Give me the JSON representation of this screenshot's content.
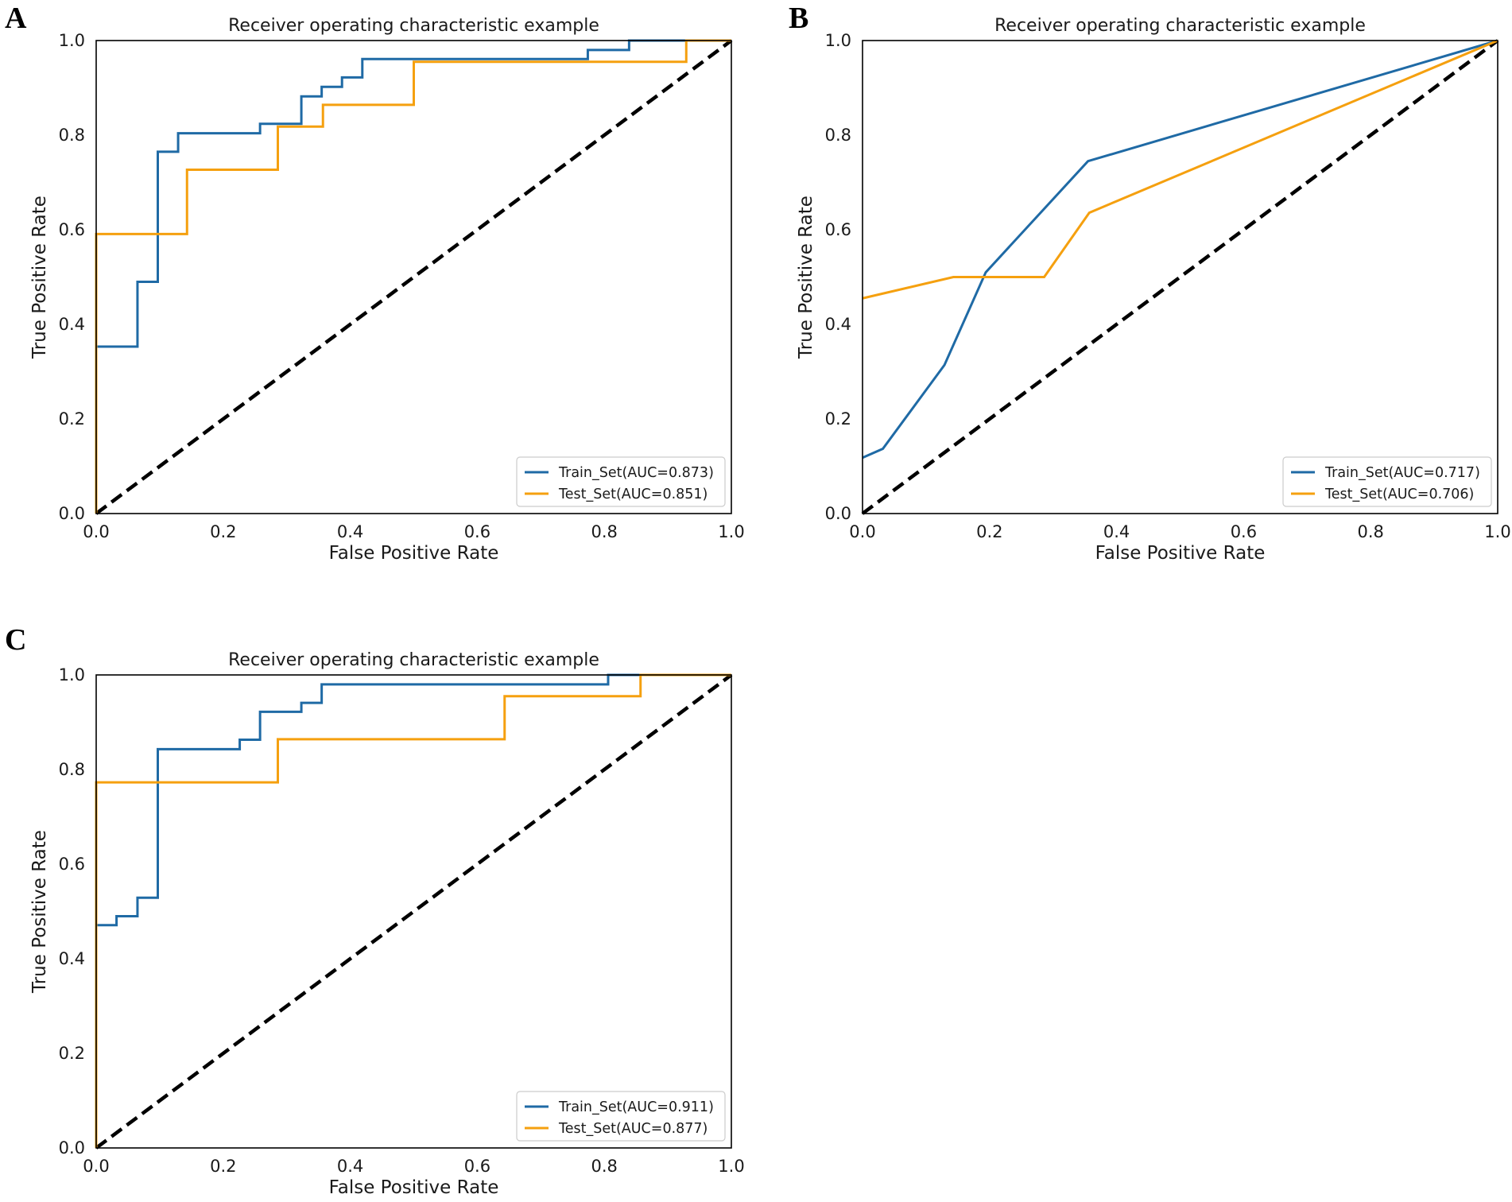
{
  "figure": {
    "panels": [
      "A",
      "B",
      "C"
    ]
  },
  "chart_data": [
    {
      "panel": "A",
      "type": "line",
      "title": "Receiver operating characteristic example",
      "xlabel": "False Positive Rate",
      "ylabel": "True Positive Rate",
      "xlim": [
        0,
        1
      ],
      "ylim": [
        0,
        1
      ],
      "xticks": [
        "0.0",
        "0.2",
        "0.4",
        "0.6",
        "0.8",
        "1.0"
      ],
      "yticks": [
        "0.0",
        "0.2",
        "0.4",
        "0.6",
        "0.8",
        "1.0"
      ],
      "legend_position": "lower-right",
      "grid": false,
      "series": [
        {
          "name": "Train_Set(AUC=0.873)",
          "color": "#1f6aa5",
          "x": [
            0,
            0,
            0.065,
            0.065,
            0.097,
            0.097,
            0.129,
            0.129,
            0.258,
            0.258,
            0.323,
            0.323,
            0.355,
            0.355,
            0.387,
            0.387,
            0.419,
            0.419,
            0.774,
            0.774,
            0.839,
            0.839,
            1.0
          ],
          "y": [
            0,
            0.353,
            0.353,
            0.49,
            0.49,
            0.765,
            0.765,
            0.804,
            0.804,
            0.824,
            0.824,
            0.882,
            0.882,
            0.902,
            0.902,
            0.922,
            0.922,
            0.961,
            0.961,
            0.98,
            0.98,
            1.0,
            1.0
          ]
        },
        {
          "name": "Test_Set(AUC=0.851)",
          "color": "#f5a00f",
          "x": [
            0,
            0,
            0.143,
            0.143,
            0.286,
            0.286,
            0.357,
            0.357,
            0.5,
            0.5,
            0.929,
            0.929,
            1.0
          ],
          "y": [
            0,
            0.591,
            0.591,
            0.727,
            0.727,
            0.818,
            0.818,
            0.864,
            0.864,
            0.955,
            0.955,
            1.0,
            1.0
          ]
        }
      ]
    },
    {
      "panel": "B",
      "type": "line",
      "title": "Receiver operating characteristic example",
      "xlabel": "False Positive Rate",
      "ylabel": "True Positive Rate",
      "xlim": [
        0,
        1
      ],
      "ylim": [
        0,
        1
      ],
      "xticks": [
        "0.0",
        "0.2",
        "0.4",
        "0.6",
        "0.8",
        "1.0"
      ],
      "yticks": [
        "0.0",
        "0.2",
        "0.4",
        "0.6",
        "0.8",
        "1.0"
      ],
      "legend_position": "lower-right",
      "grid": false,
      "series": [
        {
          "name": "Train_Set(AUC=0.717)",
          "color": "#1f6aa5",
          "x": [
            0,
            0.032,
            0.129,
            0.194,
            0.355,
            1.0
          ],
          "y": [
            0.118,
            0.137,
            0.314,
            0.51,
            0.745,
            1.0
          ]
        },
        {
          "name": "Test_Set(AUC=0.706)",
          "color": "#f5a00f",
          "x": [
            0,
            0.143,
            0.286,
            0.357,
            1.0
          ],
          "y": [
            0.455,
            0.5,
            0.5,
            0.636,
            1.0
          ]
        }
      ]
    },
    {
      "panel": "C",
      "type": "line",
      "title": "Receiver operating characteristic example",
      "xlabel": "False Positive Rate",
      "ylabel": "True Positive Rate",
      "xlim": [
        0,
        1
      ],
      "ylim": [
        0,
        1
      ],
      "xticks": [
        "0.0",
        "0.2",
        "0.4",
        "0.6",
        "0.8",
        "1.0"
      ],
      "yticks": [
        "0.0",
        "0.2",
        "0.4",
        "0.6",
        "0.8",
        "1.0"
      ],
      "legend_position": "lower-right",
      "grid": false,
      "series": [
        {
          "name": "Train_Set(AUC=0.911)",
          "color": "#1f6aa5",
          "x": [
            0,
            0,
            0.032,
            0.032,
            0.065,
            0.065,
            0.097,
            0.097,
            0.226,
            0.226,
            0.258,
            0.258,
            0.323,
            0.323,
            0.355,
            0.355,
            0.806,
            0.806,
            1.0
          ],
          "y": [
            0,
            0.471,
            0.471,
            0.49,
            0.49,
            0.529,
            0.529,
            0.843,
            0.843,
            0.863,
            0.863,
            0.922,
            0.922,
            0.941,
            0.941,
            0.98,
            0.98,
            1.0,
            1.0
          ]
        },
        {
          "name": "Test_Set(AUC=0.877)",
          "color": "#f5a00f",
          "x": [
            0,
            0,
            0.286,
            0.286,
            0.643,
            0.643,
            0.857,
            0.857,
            1.0
          ],
          "y": [
            0,
            0.773,
            0.773,
            0.864,
            0.864,
            0.955,
            0.955,
            1.0,
            1.0
          ]
        }
      ]
    }
  ]
}
